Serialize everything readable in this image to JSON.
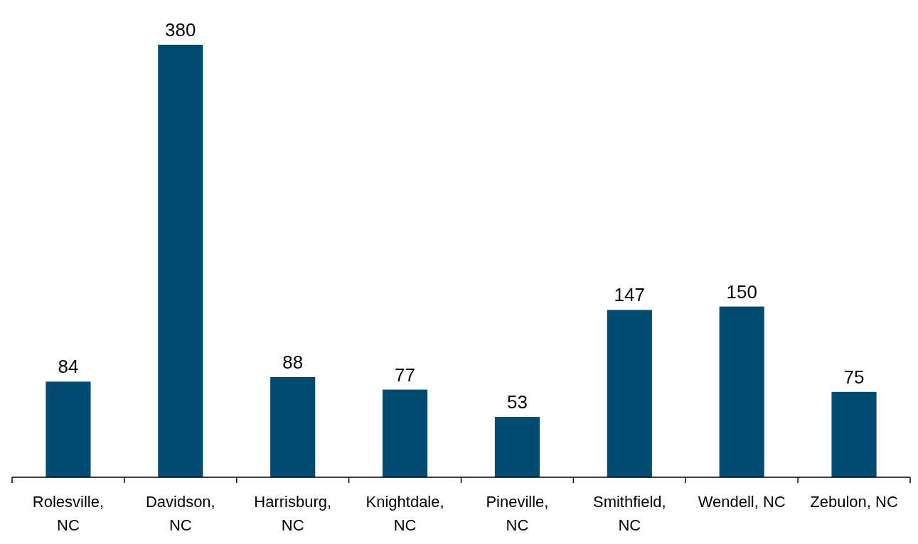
{
  "chart_data": {
    "type": "bar",
    "categories": [
      "Rolesville, NC",
      "Davidson, NC",
      "Harrisburg, NC",
      "Knightdale, NC",
      "Pineville, NC",
      "Smithfield, NC",
      "Wendell, NC",
      "Zebulon, NC"
    ],
    "values": [
      84,
      380,
      88,
      77,
      53,
      147,
      150,
      75
    ],
    "color": "#004b71",
    "data_labels": true
  }
}
